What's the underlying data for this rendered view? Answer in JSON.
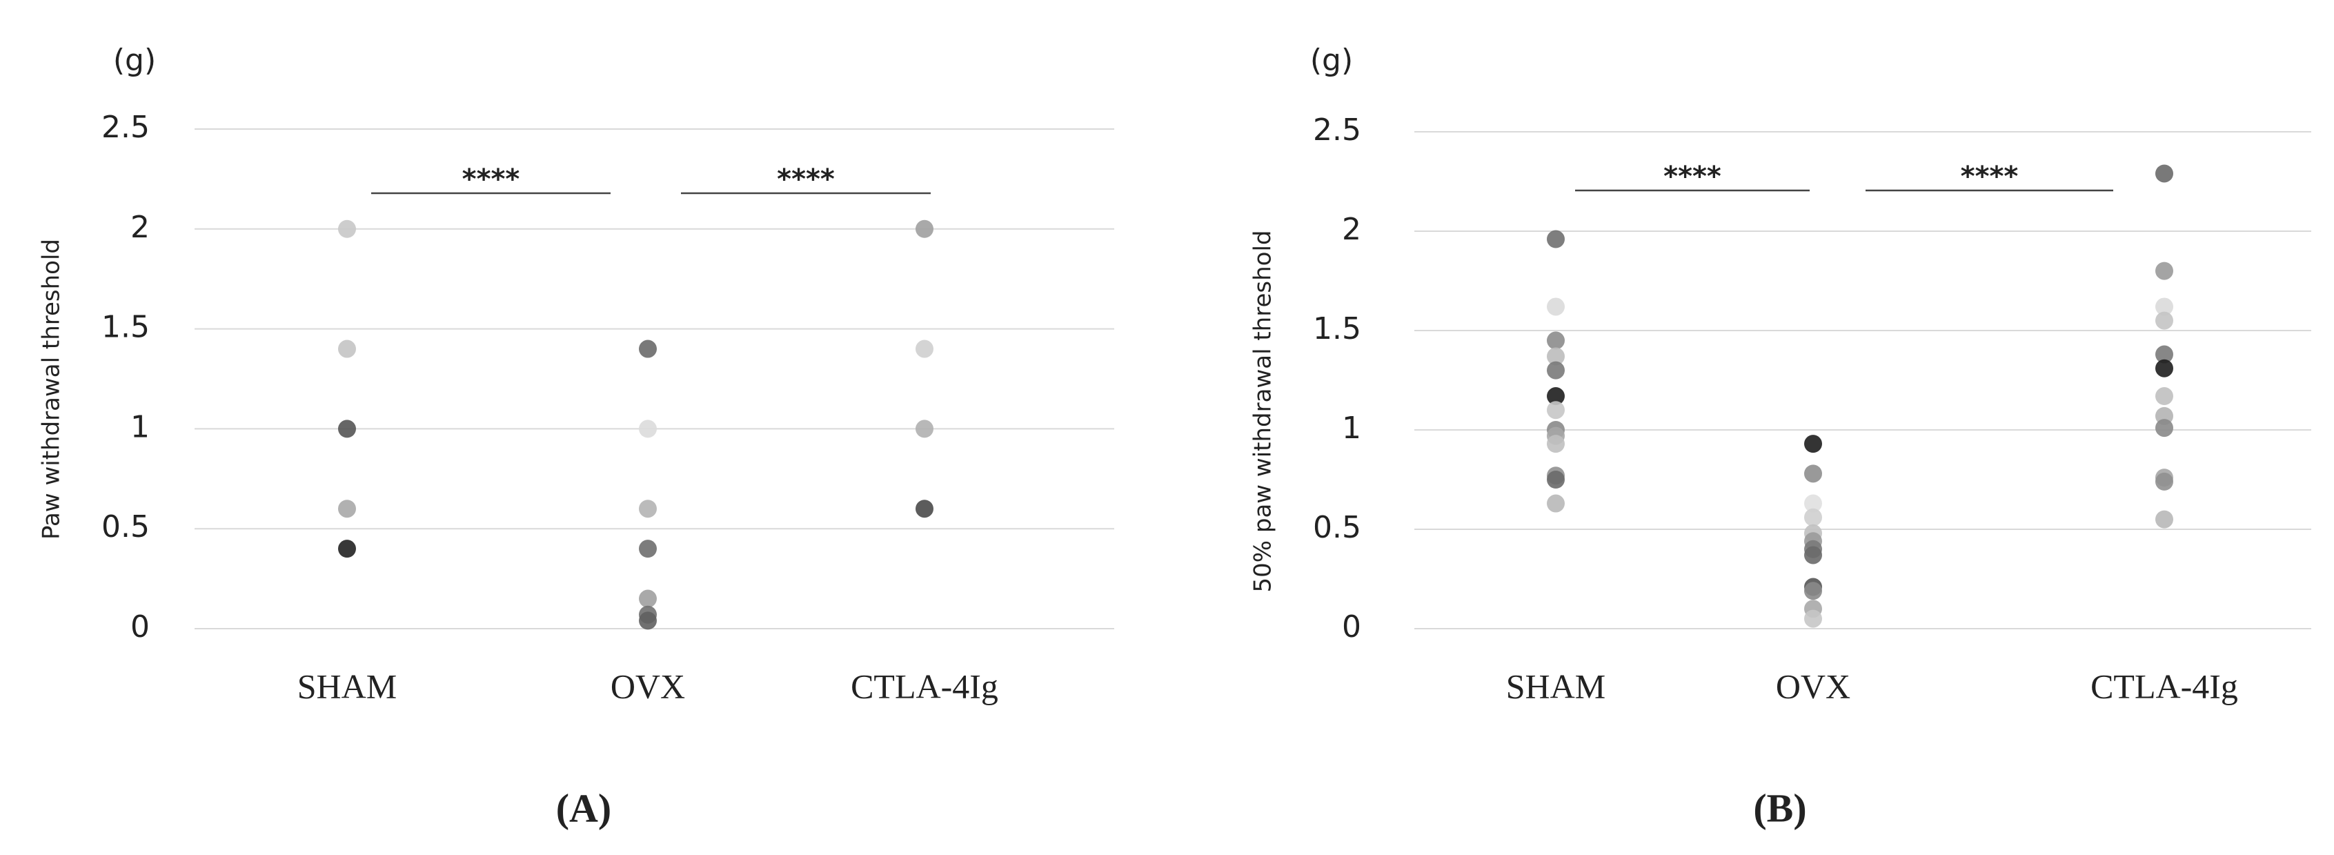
{
  "chart_data": [
    {
      "type": "scatter",
      "title": "(A)",
      "unit_label": "(g)",
      "ylabel": "Paw withdrawal threshold",
      "categories": [
        "SHAM",
        "OVX",
        "CTLA-4Ig"
      ],
      "values": [
        [
          2,
          1.4,
          1,
          0.6,
          0.4
        ],
        [
          1.4,
          1,
          0.6,
          0.4,
          0.15,
          0.07,
          0.04
        ],
        [
          2,
          1.4,
          1,
          0.6
        ]
      ],
      "colors": [
        [
          "#c8c8c8",
          "#c4c4c4",
          "#555555",
          "#a8a8a8",
          "#222222"
        ],
        [
          "#6a6a6a",
          "#dcdcdc",
          "#b4b4b4",
          "#6e6e6e",
          "#a0a0a0",
          "#707070",
          "#606060"
        ],
        [
          "#a0a0a0",
          "#cfcfcf",
          "#b0b0b0",
          "#4a4a4a"
        ]
      ],
      "annotations": [
        "****",
        "****"
      ],
      "ylim": [
        0,
        2.5
      ],
      "yticks": [
        0,
        0.5,
        1,
        1.5,
        2,
        2.5
      ],
      "grid": true
    },
    {
      "type": "scatter",
      "title": "(B)",
      "unit_label": "(g)",
      "ylabel": "50% paw withdrawal threshold",
      "categories": [
        "SHAM",
        "OVX",
        "CTLA-4Ig"
      ],
      "values": [
        [
          1.96,
          1.62,
          1.45,
          1.37,
          1.3,
          1.17,
          1.1,
          1.0,
          0.97,
          0.93,
          0.77,
          0.75,
          0.63
        ],
        [
          0.93,
          0.78,
          0.63,
          0.56,
          0.48,
          0.44,
          0.4,
          0.37,
          0.21,
          0.19,
          0.1,
          0.05
        ],
        [
          2.29,
          1.8,
          1.62,
          1.55,
          1.38,
          1.31,
          1.17,
          1.07,
          1.01,
          0.76,
          0.74,
          0.55
        ]
      ],
      "colors": [
        [
          "#707070",
          "#dadada",
          "#8c8c8c",
          "#bdbdbd",
          "#7a7a7a",
          "#1e1e1e",
          "#c6c6c6",
          "#8a8a8a",
          "#a6a6a6",
          "#c0c0c0",
          "#909090",
          "#6a6a6a",
          "#b8b8b8"
        ],
        [
          "#1e1e1e",
          "#8e8e8e",
          "#e0e0e0",
          "#cfcfcf",
          "#c0c0c0",
          "#9a9a9a",
          "#7a7a7a",
          "#6a6a6a",
          "#555555",
          "#8a8a8a",
          "#a8a8a8",
          "#c6c6c6"
        ],
        [
          "#6a6a6a",
          "#9a9a9a",
          "#dadada",
          "#c4c4c4",
          "#7a7a7a",
          "#1e1e1e",
          "#c0c0c0",
          "#b4b4b4",
          "#8a8a8a",
          "#a6a6a6",
          "#909090",
          "#b8b8b8"
        ]
      ],
      "annotations": [
        "****",
        "****"
      ],
      "ylim": [
        0,
        2.5
      ],
      "yticks": [
        0,
        0.5,
        1,
        1.5,
        2,
        2.5
      ],
      "grid": true
    }
  ]
}
